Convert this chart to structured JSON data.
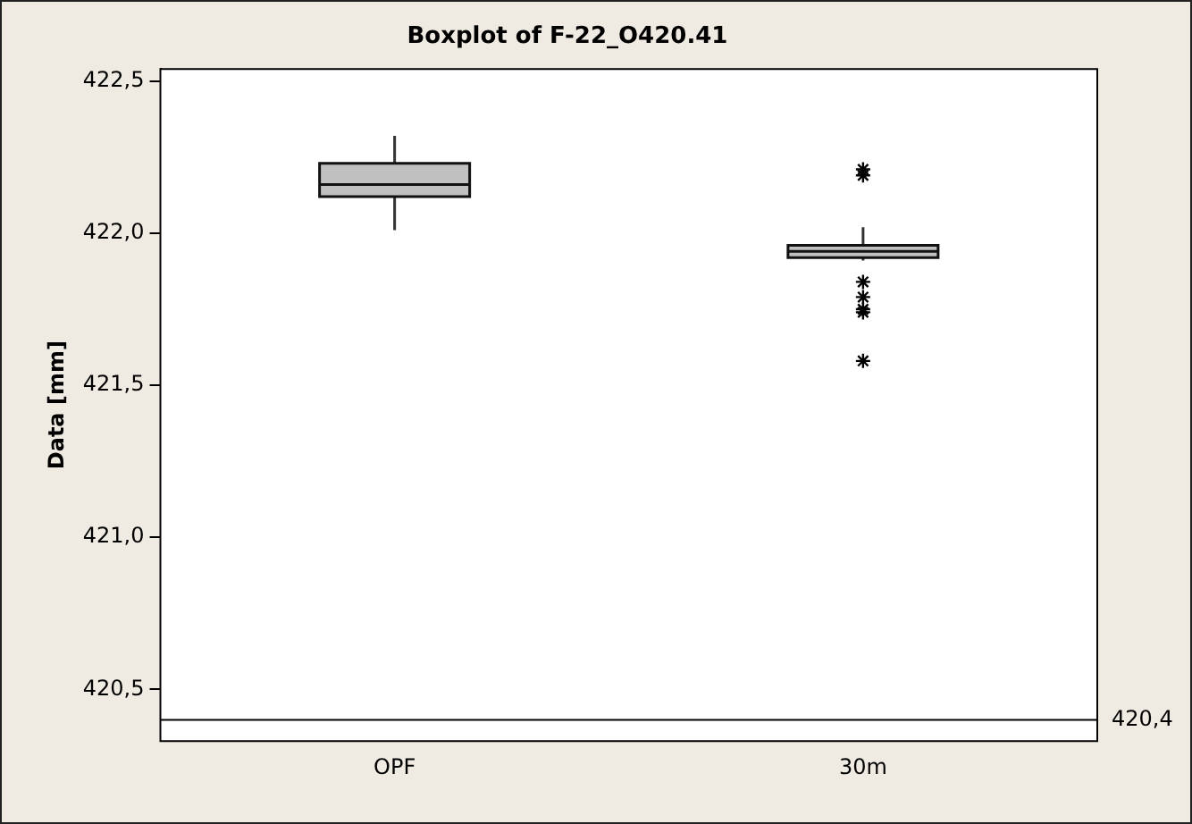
{
  "chart_data": {
    "type": "box",
    "title": "Boxplot of F-22_O420.41",
    "ylabel": "Data [mm]",
    "categories": [
      "OPF",
      "30m"
    ],
    "boxes": [
      {
        "low": 422.01,
        "q1": 422.12,
        "median": 422.16,
        "q3": 422.23,
        "high": 422.32
      },
      {
        "low": 421.91,
        "q1": 421.92,
        "median": 421.94,
        "q3": 421.96,
        "high": 422.02,
        "outliers": [
          422.21,
          422.19,
          421.84,
          421.79,
          421.75,
          421.74,
          421.58
        ]
      }
    ],
    "color": "#c0c0c0",
    "ylim": [
      420.33,
      422.54
    ],
    "yticks": [
      {
        "value": 420.5,
        "label": "420,5"
      },
      {
        "value": 421,
        "label": "421,0"
      },
      {
        "value": 421.5,
        "label": "421,5"
      },
      {
        "value": 422,
        "label": "422,0"
      },
      {
        "value": 422.5,
        "label": "422,5"
      }
    ],
    "ref_lines": [
      {
        "axis": "y",
        "value": 420.4,
        "label": "420,4"
      }
    ],
    "grid": false,
    "legend": false,
    "marker": "star"
  }
}
